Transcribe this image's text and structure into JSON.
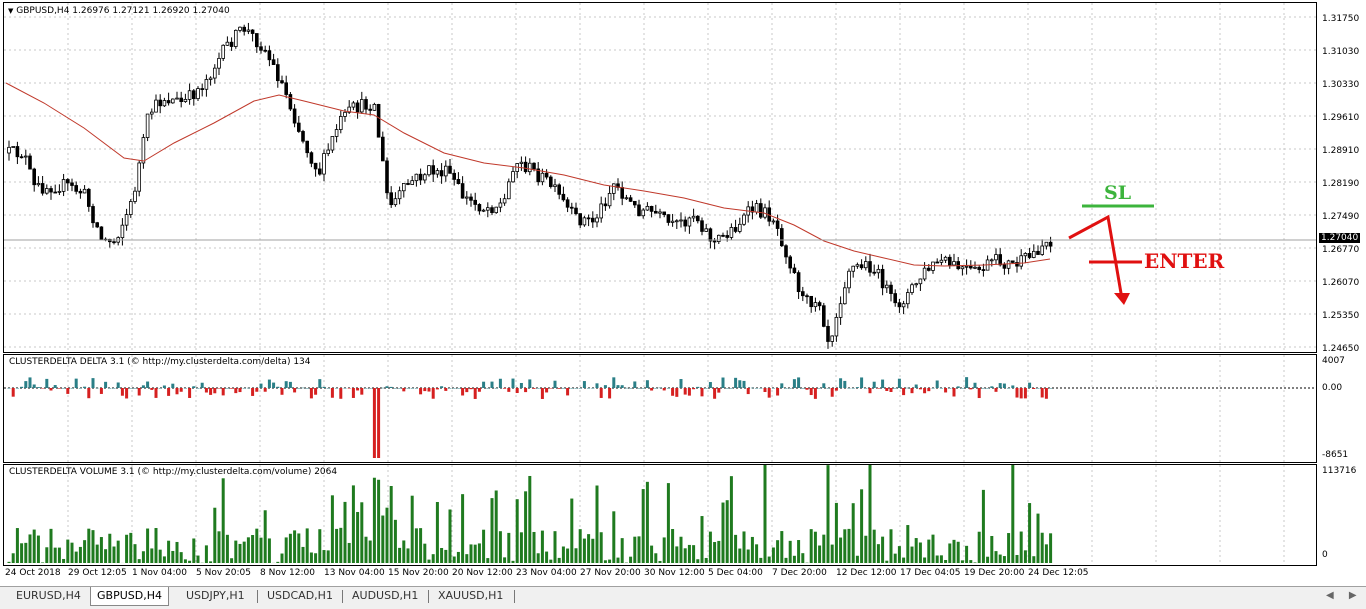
{
  "chart_title": "GBPUSD,H4  1.26976 1.27121 1.26920 1.27040",
  "price_scale": [
    "1.31750",
    "1.31030",
    "1.30330",
    "1.29610",
    "1.28910",
    "1.28190",
    "1.27490",
    "1.26770",
    "1.26070",
    "1.25350",
    "1.24650"
  ],
  "current_price": "1.27040",
  "delta_indicator": {
    "title": "CLUSTERDELTA DELTA 3.1 (© http://my.clusterdelta.com/delta) 134",
    "scale": [
      "4007",
      "0.00",
      "-8651"
    ]
  },
  "volume_indicator": {
    "title": "CLUSTERDELTA VOLUME 3.1 (© http://my.clusterdelta.com/volume) 2064",
    "scale": [
      "113716",
      "0"
    ]
  },
  "time_axis": [
    "24 Oct 2018",
    "29 Oct 12:05",
    "1 Nov 04:00",
    "5 Nov 20:05",
    "8 Nov 12:00",
    "13 Nov 04:00",
    "15 Nov 20:00",
    "20 Nov 12:00",
    "23 Nov 04:00",
    "27 Nov 20:00",
    "30 Nov 12:00",
    "5 Dec 04:00",
    "7 Dec 20:00",
    "12 Dec 12:00",
    "17 Dec 04:05",
    "19 Dec 20:00",
    "24 Dec 12:05"
  ],
  "annotations": {
    "sl": "SL",
    "enter": "ENTER"
  },
  "tabs": [
    "EURUSD,H4",
    "GBPUSD,H4",
    "USDJPY,H1",
    "USDCAD,H1",
    "AUDUSD,H1",
    "XAUUSD,H1"
  ],
  "active_tab": "GBPUSD,H4",
  "colors": {
    "ma": "#c0392b",
    "delta_pos": "#2a7f87",
    "delta_neg": "#d62020",
    "volume": "#1f7a1f",
    "sl": "#3cb43c",
    "enter": "#e01010"
  },
  "icons": {
    "title_arrow": "triangle-down-icon",
    "scroll_left": "scroll-left-icon",
    "scroll_right": "scroll-right-icon"
  }
}
